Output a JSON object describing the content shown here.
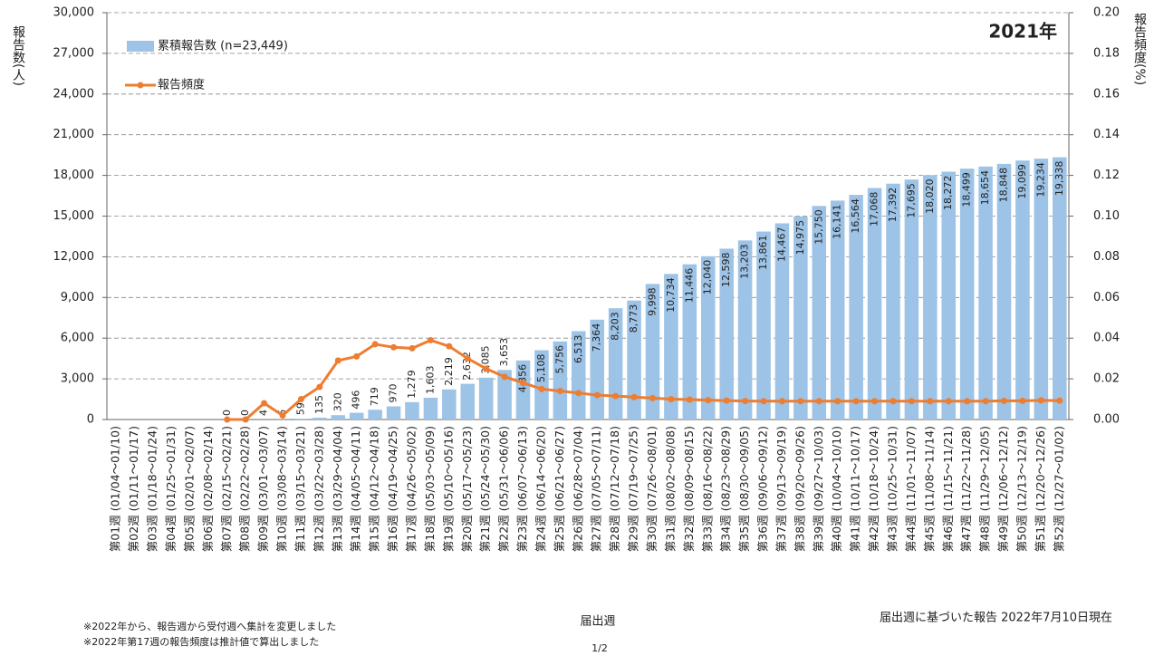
{
  "chart_data": {
    "type": "bar",
    "title": "2021年",
    "ylabel": "報告数(人)",
    "y2label": "報告頻度(%)",
    "xlabel": "届出週",
    "categories": [
      "第01週 (01/04～01/10)",
      "第02週 (01/11～01/17)",
      "第03週 (01/18～01/24)",
      "第04週 (01/25～01/31)",
      "第05週 (02/01～02/07)",
      "第06週 (02/08～02/14)",
      "第07週 (02/15～02/21)",
      "第08週 (02/22～02/28)",
      "第09週 (03/01～03/07)",
      "第10週 (03/08～03/14)",
      "第11週 (03/15～03/21)",
      "第12週 (03/22～03/28)",
      "第13週 (03/29～04/04)",
      "第14週 (04/05～04/11)",
      "第15週 (04/12～04/18)",
      "第16週 (04/19～04/25)",
      "第17週 (04/26～05/02)",
      "第18週 (05/03～05/09)",
      "第19週 (05/10～05/16)",
      "第20週 (05/17～05/23)",
      "第21週 (05/24～05/30)",
      "第22週 (05/31～06/06)",
      "第23週 (06/07～06/13)",
      "第24週 (06/14～06/20)",
      "第25週 (06/21～06/27)",
      "第26週 (06/28～07/04)",
      "第27週 (07/05～07/11)",
      "第28週 (07/12～07/18)",
      "第29週 (07/19～07/25)",
      "第30週 (07/26～08/01)",
      "第31週 (08/02～08/08)",
      "第32週 (08/09～08/15)",
      "第33週 (08/16～08/22)",
      "第34週 (08/23～08/29)",
      "第35週 (08/30～09/05)",
      "第36週 (09/06～09/12)",
      "第37週 (09/13～09/19)",
      "第38週 (09/20～09/26)",
      "第39週 (09/27～10/03)",
      "第40週 (10/04～10/10)",
      "第41週 (10/11～10/17)",
      "第42週 (10/18～10/24)",
      "第43週 (10/25～10/31)",
      "第44週 (11/01～11/07)",
      "第45週 (11/08～11/14)",
      "第46週 (11/15～11/21)",
      "第47週 (11/22～11/28)",
      "第48週 (11/29～12/05)",
      "第49週 (12/06～12/12)",
      "第50週 (12/13～12/19)",
      "第51週 (12/20～12/26)",
      "第52週 (12/27～01/02)"
    ],
    "series": [
      {
        "name": "累積報告数 (n=23,449)",
        "type": "bar",
        "color": "#9dc3e6",
        "values": [
          null,
          null,
          null,
          null,
          null,
          null,
          0,
          0,
          4,
          6,
          59,
          135,
          320,
          496,
          719,
          970,
          1279,
          1603,
          2219,
          2632,
          3085,
          3653,
          4356,
          5108,
          5756,
          6513,
          7364,
          8203,
          8773,
          9998,
          10734,
          11446,
          12040,
          12598,
          13203,
          13861,
          14467,
          14975,
          15750,
          16141,
          16564,
          17068,
          17392,
          17695,
          18020,
          18272,
          18499,
          18654,
          18848,
          19099,
          19234,
          19338
        ],
        "value_labels": [
          null,
          null,
          null,
          null,
          null,
          null,
          "0",
          "0",
          "4",
          "6",
          "59",
          "135",
          "320",
          "496",
          "719",
          "970",
          "1,279",
          "1,603",
          "2,219",
          "2,632",
          "3,085",
          "3,653",
          "4,356",
          "5,108",
          "5,756",
          "6,513",
          "7,364",
          "8,203",
          "8,773",
          "9,998",
          "10,734",
          "11,446",
          "12,040",
          "12,598",
          "13,203",
          "13,861",
          "14,467",
          "14,975",
          "15,750",
          "16,141",
          "16,564",
          "17,068",
          "17,392",
          "17,695",
          "18,020",
          "18,272",
          "18,499",
          "18,654",
          "18,848",
          "19,099",
          "19,234",
          "19,338"
        ]
      },
      {
        "name": "報告頻度",
        "type": "line",
        "axis": "y2",
        "color": "#ed7d31",
        "values": [
          null,
          null,
          null,
          null,
          null,
          null,
          0,
          0,
          0.008,
          0.002,
          0.01,
          0.016,
          0.029,
          0.031,
          0.037,
          0.0355,
          0.035,
          0.039,
          0.036,
          0.03,
          0.025,
          0.021,
          0.018,
          0.015,
          0.014,
          0.013,
          0.012,
          0.0115,
          0.011,
          0.0105,
          0.01,
          0.0098,
          0.0095,
          0.0093,
          0.0091,
          0.009,
          0.009,
          0.009,
          0.009,
          0.009,
          0.009,
          0.009,
          0.009,
          0.009,
          0.009,
          0.009,
          0.009,
          0.009,
          0.0092,
          0.0092,
          0.0094,
          0.0093
        ]
      }
    ],
    "ylim": [
      0,
      30000
    ],
    "yticks": [
      0,
      {
        "value": 3000,
        "label": "3,000"
      },
      {
        "value": 6000,
        "label": "6,000"
      },
      {
        "value": 9000,
        "label": "9,000"
      },
      {
        "value": 12000,
        "label": "12,000"
      },
      {
        "value": 15000,
        "label": "15,000"
      },
      {
        "value": 18000,
        "label": "18,000"
      },
      {
        "value": 21000,
        "label": "21,000"
      },
      {
        "value": 24000,
        "label": "24,000"
      },
      {
        "value": 27000,
        "label": "27,000"
      },
      {
        "value": 30000,
        "label": "30,000"
      }
    ],
    "y2lim": [
      0,
      0.2
    ],
    "y2ticks": [
      {
        "value": 0,
        "label": "0.00"
      },
      {
        "value": 0.02,
        "label": "0.02"
      },
      {
        "value": 0.04,
        "label": "0.04"
      },
      {
        "value": 0.06,
        "label": "0.06"
      },
      {
        "value": 0.08,
        "label": "0.08"
      },
      {
        "value": 0.1,
        "label": "0.10"
      },
      {
        "value": 0.12,
        "label": "0.12"
      },
      {
        "value": 0.14,
        "label": "0.14"
      },
      {
        "value": 0.16,
        "label": "0.16"
      },
      {
        "value": 0.18,
        "label": "0.18"
      },
      {
        "value": 0.2,
        "label": "0.20"
      }
    ],
    "grid": true,
    "notes": [
      "※2022年から、報告週から受付週へ集計を変更しました",
      "※2022年第17週の報告頻度は推計値で算出しました"
    ],
    "source": "届出週に基づいた報告 2022年7月10日現在",
    "page": "1/2"
  }
}
